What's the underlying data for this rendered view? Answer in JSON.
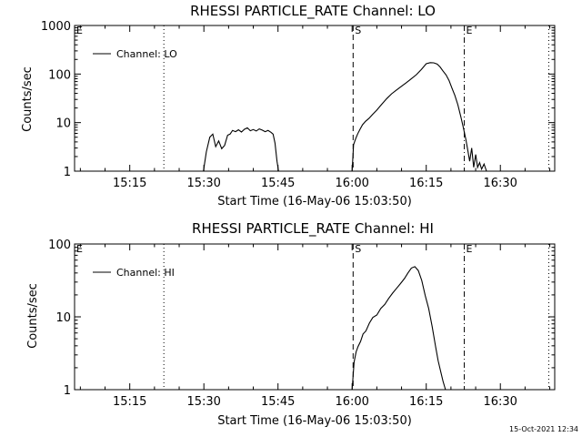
{
  "timestamp": "15-Oct-2021 12:34",
  "chart_data": [
    {
      "type": "line",
      "title": "RHESSI PARTICLE_RATE Channel: LO",
      "xlabel": "Start Time (16-May-06 15:03:50)",
      "ylabel": "Counts/sec",
      "x_unit": "minutes after 15:00 UT",
      "xlim": [
        3.83,
        101
      ],
      "ylim": [
        1,
        1000
      ],
      "y_scale": "log",
      "x_ticks": [
        {
          "x": 15,
          "label": "15:15"
        },
        {
          "x": 30,
          "label": "15:30"
        },
        {
          "x": 45,
          "label": "15:45"
        },
        {
          "x": 60,
          "label": "16:00"
        },
        {
          "x": 75,
          "label": "16:15"
        },
        {
          "x": 90,
          "label": "16:30"
        }
      ],
      "y_ticks": [
        {
          "y": 1,
          "label": "1"
        },
        {
          "y": 10,
          "label": "10"
        },
        {
          "y": 100,
          "label": "100"
        },
        {
          "y": 1000,
          "label": "1000"
        }
      ],
      "markers": [
        {
          "x": 3.83,
          "label": "E",
          "style": "dotted"
        },
        {
          "x": 21.9,
          "label": "",
          "style": "dotted"
        },
        {
          "x": 60.2,
          "label": "S",
          "style": "dashed"
        },
        {
          "x": 82.7,
          "label": "E",
          "style": "dashdot"
        },
        {
          "x": 99.8,
          "label": "",
          "style": "dotted"
        }
      ],
      "legend": {
        "position": "top-left",
        "entries": [
          "Channel: LO"
        ]
      },
      "series": [
        {
          "name": "Channel: LO",
          "x": [
            29.9,
            30.5,
            31.2,
            31.8,
            32.4,
            33.0,
            33.6,
            34.2,
            34.8,
            35.3,
            35.8,
            36.4,
            37.0,
            37.6,
            38.2,
            38.8,
            39.4,
            40.0,
            40.6,
            41.2,
            41.8,
            42.4,
            43.0,
            43.6,
            44.0,
            44.4,
            44.8,
            45.1,
            60.0,
            60.3,
            60.7,
            61.1,
            61.6,
            62.1,
            62.7,
            63.4,
            64.2,
            65.0,
            66.0,
            67.0,
            68.0,
            69.0,
            70.0,
            71.0,
            72.0,
            73.0,
            74.0,
            75.0,
            75.8,
            76.5,
            77.2,
            77.8,
            78.4,
            79.0,
            79.6,
            80.2,
            80.8,
            81.4,
            82.0,
            82.5,
            83.0,
            83.4,
            83.8,
            84.2,
            84.6,
            85.0,
            85.4,
            85.8,
            86.2,
            86.7,
            87.2
          ],
          "y": [
            1,
            2.5,
            5,
            5.8,
            3.2,
            4.2,
            2.9,
            3.4,
            5.5,
            5.8,
            6.9,
            6.5,
            7.1,
            6.4,
            7.3,
            7.8,
            6.8,
            7.2,
            6.7,
            7.4,
            7.0,
            6.5,
            6.9,
            6.3,
            5.8,
            3.8,
            1.6,
            1,
            1,
            3.5,
            4.6,
            5.8,
            7.3,
            9.0,
            10.6,
            12.2,
            14.9,
            18.1,
            23.9,
            31.2,
            39.2,
            47.0,
            56.1,
            66.8,
            80.2,
            97.2,
            124,
            163,
            172,
            170,
            160,
            140,
            115,
            96.1,
            74.3,
            51.2,
            36.3,
            23.3,
            13.1,
            7.9,
            4.6,
            2.7,
            1.6,
            3.0,
            1.2,
            2.2,
            1.2,
            1.5,
            1.1,
            1.4,
            1
          ]
        }
      ]
    },
    {
      "type": "line",
      "title": "RHESSI PARTICLE_RATE Channel: HI",
      "xlabel": "Start Time (16-May-06 15:03:50)",
      "ylabel": "Counts/sec",
      "x_unit": "minutes after 15:00 UT",
      "xlim": [
        3.83,
        101
      ],
      "ylim": [
        1,
        100
      ],
      "y_scale": "log",
      "x_ticks": [
        {
          "x": 15,
          "label": "15:15"
        },
        {
          "x": 30,
          "label": "15:30"
        },
        {
          "x": 45,
          "label": "15:45"
        },
        {
          "x": 60,
          "label": "16:00"
        },
        {
          "x": 75,
          "label": "16:15"
        },
        {
          "x": 90,
          "label": "16:30"
        }
      ],
      "y_ticks": [
        {
          "y": 1,
          "label": "1"
        },
        {
          "y": 10,
          "label": "10"
        },
        {
          "y": 100,
          "label": "100"
        }
      ],
      "markers": [
        {
          "x": 3.83,
          "label": "E",
          "style": "dotted"
        },
        {
          "x": 21.9,
          "label": "",
          "style": "dotted"
        },
        {
          "x": 60.2,
          "label": "S",
          "style": "dashed"
        },
        {
          "x": 82.7,
          "label": "E",
          "style": "dashdot"
        },
        {
          "x": 99.8,
          "label": "",
          "style": "dotted"
        }
      ],
      "legend": {
        "position": "top-left",
        "entries": [
          "Channel: HI"
        ]
      },
      "series": [
        {
          "name": "Channel: HI",
          "x": [
            60.0,
            60.4,
            60.8,
            61.2,
            61.7,
            62.2,
            62.8,
            63.5,
            64.2,
            65.0,
            65.8,
            66.6,
            67.4,
            68.2,
            69.0,
            69.8,
            70.6,
            71.3,
            72.0,
            72.7,
            73.4,
            74.1,
            74.8,
            75.5,
            76.2,
            76.9,
            77.4,
            77.9,
            78.4,
            78.9
          ],
          "y": [
            1,
            2.4,
            3.3,
            3.9,
            4.6,
            5.8,
            6.4,
            8.2,
            9.8,
            10.6,
            13.0,
            14.8,
            17.9,
            21.2,
            24.6,
            28.7,
            33.6,
            40.0,
            46.8,
            48.9,
            43.2,
            31.5,
            19.6,
            13.0,
            7.4,
            3.9,
            2.5,
            1.8,
            1.3,
            1
          ]
        }
      ]
    }
  ]
}
